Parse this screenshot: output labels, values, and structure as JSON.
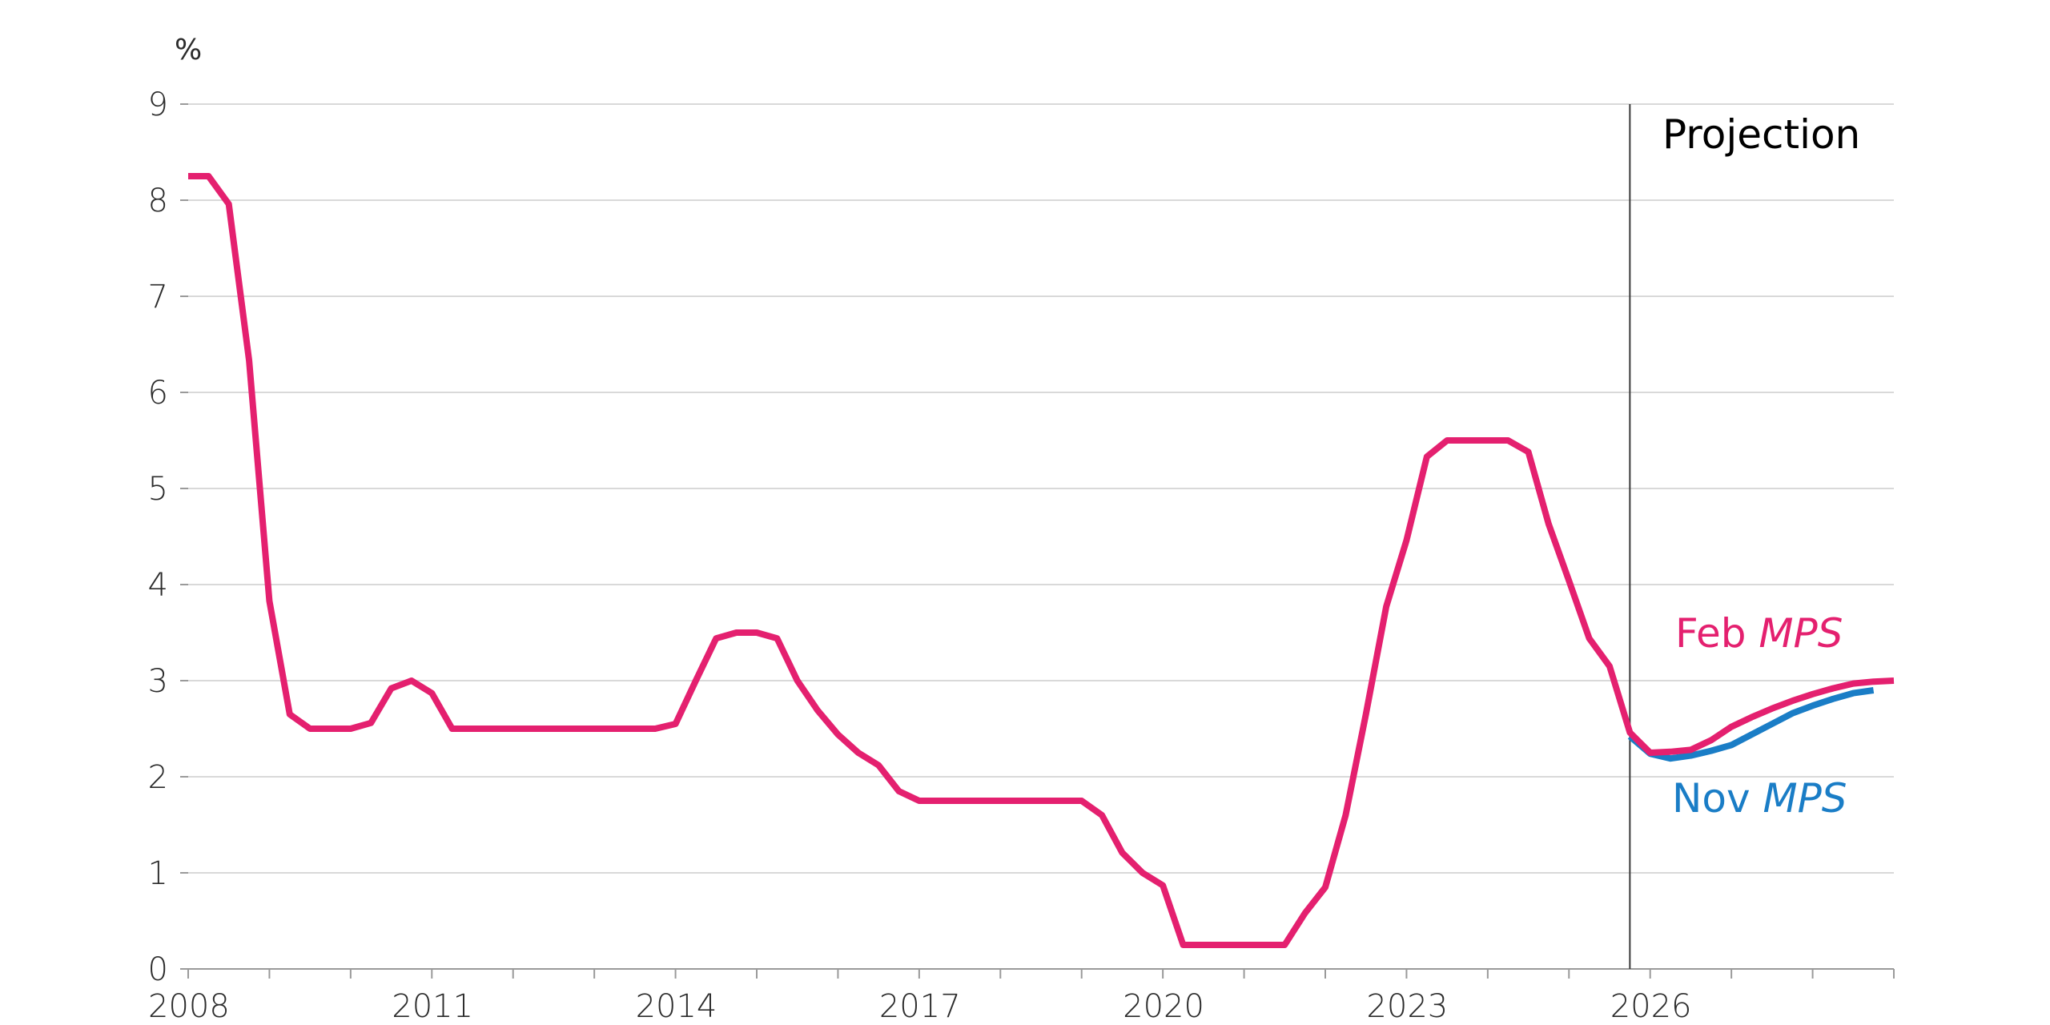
{
  "chart_data": {
    "type": "line",
    "unit_label": "%",
    "ylim": [
      0,
      9
    ],
    "y_ticks": [
      "0",
      "1",
      "2",
      "3",
      "4",
      "5",
      "6",
      "7",
      "8",
      "9"
    ],
    "xlim": [
      2008.0,
      2029.0
    ],
    "x_ticks": [
      "2008",
      "2011",
      "2014",
      "2017",
      "2020",
      "2023",
      "2026"
    ],
    "grid": true,
    "projection_start": 2025.75,
    "projection_label": "Projection",
    "annotations": {
      "feb": {
        "text": "Feb ",
        "italic": "MPS",
        "color": "#e4206f"
      },
      "nov": {
        "text": "Nov ",
        "italic": "MPS",
        "color": "#1a7dc6"
      }
    },
    "series": [
      {
        "name": "Feb MPS",
        "color": "#e4206f",
        "points": [
          [
            2008.0,
            8.25
          ],
          [
            2008.25,
            8.25
          ],
          [
            2008.5,
            7.96
          ],
          [
            2008.75,
            6.33
          ],
          [
            2009.0,
            3.83
          ],
          [
            2009.25,
            2.65
          ],
          [
            2009.5,
            2.5
          ],
          [
            2009.75,
            2.5
          ],
          [
            2010.0,
            2.5
          ],
          [
            2010.25,
            2.56
          ],
          [
            2010.5,
            2.92
          ],
          [
            2010.75,
            3.0
          ],
          [
            2011.0,
            2.87
          ],
          [
            2011.25,
            2.5
          ],
          [
            2011.5,
            2.5
          ],
          [
            2011.75,
            2.5
          ],
          [
            2012.0,
            2.5
          ],
          [
            2012.25,
            2.5
          ],
          [
            2012.5,
            2.5
          ],
          [
            2012.75,
            2.5
          ],
          [
            2013.0,
            2.5
          ],
          [
            2013.25,
            2.5
          ],
          [
            2013.5,
            2.5
          ],
          [
            2013.75,
            2.5
          ],
          [
            2014.0,
            2.55
          ],
          [
            2014.25,
            3.0
          ],
          [
            2014.5,
            3.44
          ],
          [
            2014.75,
            3.5
          ],
          [
            2015.0,
            3.5
          ],
          [
            2015.25,
            3.44
          ],
          [
            2015.5,
            3.0
          ],
          [
            2015.75,
            2.69
          ],
          [
            2016.0,
            2.44
          ],
          [
            2016.25,
            2.25
          ],
          [
            2016.5,
            2.12
          ],
          [
            2016.75,
            1.85
          ],
          [
            2017.0,
            1.75
          ],
          [
            2017.25,
            1.75
          ],
          [
            2017.5,
            1.75
          ],
          [
            2017.75,
            1.75
          ],
          [
            2018.0,
            1.75
          ],
          [
            2018.25,
            1.75
          ],
          [
            2018.5,
            1.75
          ],
          [
            2018.75,
            1.75
          ],
          [
            2019.0,
            1.75
          ],
          [
            2019.25,
            1.6
          ],
          [
            2019.5,
            1.21
          ],
          [
            2019.75,
            1.0
          ],
          [
            2020.0,
            0.87
          ],
          [
            2020.25,
            0.25
          ],
          [
            2020.5,
            0.25
          ],
          [
            2020.75,
            0.25
          ],
          [
            2021.0,
            0.25
          ],
          [
            2021.25,
            0.25
          ],
          [
            2021.5,
            0.25
          ],
          [
            2021.75,
            0.58
          ],
          [
            2022.0,
            0.85
          ],
          [
            2022.25,
            1.6
          ],
          [
            2022.5,
            2.65
          ],
          [
            2022.75,
            3.77
          ],
          [
            2023.0,
            4.46
          ],
          [
            2023.25,
            5.33
          ],
          [
            2023.5,
            5.5
          ],
          [
            2023.75,
            5.5
          ],
          [
            2024.0,
            5.5
          ],
          [
            2024.25,
            5.5
          ],
          [
            2024.5,
            5.38
          ],
          [
            2024.75,
            4.63
          ],
          [
            2025.0,
            4.04
          ],
          [
            2025.25,
            3.44
          ],
          [
            2025.5,
            3.15
          ],
          [
            2025.75,
            2.46
          ],
          [
            2026.0,
            2.25
          ],
          [
            2026.25,
            2.26
          ],
          [
            2026.5,
            2.28
          ],
          [
            2026.75,
            2.38
          ],
          [
            2027.0,
            2.52
          ],
          [
            2027.25,
            2.62
          ],
          [
            2027.5,
            2.71
          ],
          [
            2027.75,
            2.79
          ],
          [
            2028.0,
            2.86
          ],
          [
            2028.25,
            2.92
          ],
          [
            2028.5,
            2.97
          ],
          [
            2028.75,
            2.99
          ],
          [
            2029.0,
            3.0
          ]
        ]
      },
      {
        "name": "Nov MPS",
        "color": "#1a7dc6",
        "points": [
          [
            2025.75,
            2.42
          ],
          [
            2026.0,
            2.24
          ],
          [
            2026.25,
            2.19
          ],
          [
            2026.5,
            2.22
          ],
          [
            2026.75,
            2.27
          ],
          [
            2027.0,
            2.33
          ],
          [
            2027.25,
            2.44
          ],
          [
            2027.5,
            2.55
          ],
          [
            2027.75,
            2.66
          ],
          [
            2028.0,
            2.74
          ],
          [
            2028.25,
            2.81
          ],
          [
            2028.5,
            2.87
          ],
          [
            2028.75,
            2.9
          ]
        ]
      }
    ]
  }
}
